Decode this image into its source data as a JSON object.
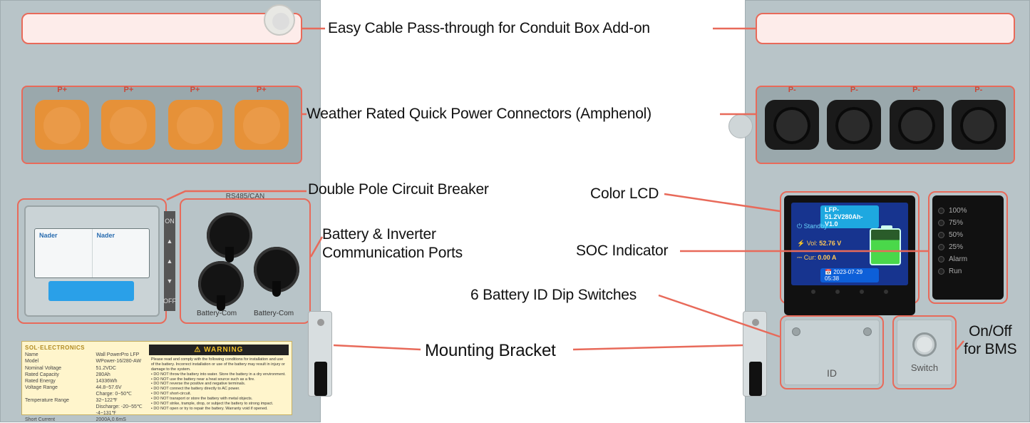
{
  "callouts": {
    "passthrough": "Easy Cable Pass-through for Conduit Box Add-on",
    "connectors": "Weather Rated Quick Power Connectors (Amphenol)",
    "breaker": "Double Pole Circuit Breaker",
    "comm": "Battery & Inverter Communication Ports",
    "lcd": "Color LCD",
    "soc": "SOC Indicator",
    "dip": "6 Battery ID Dip Switches",
    "bracket": "Mounting Bracket",
    "bms1": "On/Off",
    "bms2": "for BMS"
  },
  "conn_labels_pos": [
    "P+",
    "P+",
    "P+",
    "P+"
  ],
  "conn_labels_neg": [
    "P-",
    "P-",
    "P-",
    "P-"
  ],
  "breaker_brand": "Nader",
  "arrow_on": "ON",
  "arrow_off": "OFF",
  "comm_port_label": "Battery-Com",
  "comm_header": "RS485/CAN",
  "lcd": {
    "title": "LFP-51.2V280Ah-V1.0",
    "standby": "Standby",
    "vol_label": "Vol:",
    "vol_value": "52.76 V",
    "cur_label": "Cur:",
    "cur_value": "0.00 A",
    "date": "2023-07-29 05:38"
  },
  "soc_levels": [
    "100%",
    "75%",
    "50%",
    "25%",
    "Alarm",
    "Run"
  ],
  "id_label": "ID",
  "switch_label": "Switch",
  "warning": {
    "header": "⚠ WARNING",
    "brand": "SOL·ELECTRONICS",
    "specs": [
      [
        "Name",
        "Wall PowerPro LFP"
      ],
      [
        "Model",
        "WPower-16/280-AW"
      ],
      [
        "Nominal Voltage",
        "51.2VDC"
      ],
      [
        "Rated Capacity",
        "280Ah"
      ],
      [
        "Rated Energy",
        "14336Wh"
      ],
      [
        "Voltage Range",
        "44.8~57.6V"
      ],
      [
        "",
        "Charge: 0~50℃"
      ],
      [
        "Temperature Range",
        "32~122℉"
      ],
      [
        "",
        "Discharge: -20~55℃"
      ],
      [
        "",
        "-4~131℉"
      ],
      [
        "Short Current",
        "2000A,0.6mS"
      ]
    ]
  },
  "colors": {
    "highlight": "#e86a5a",
    "highlight_fill": "#fdecea",
    "panel": "#b8c4c8",
    "orange_conn": "#e69138",
    "lcd_bg": "#17348f",
    "breaker_blue": "#2aa0e8"
  }
}
